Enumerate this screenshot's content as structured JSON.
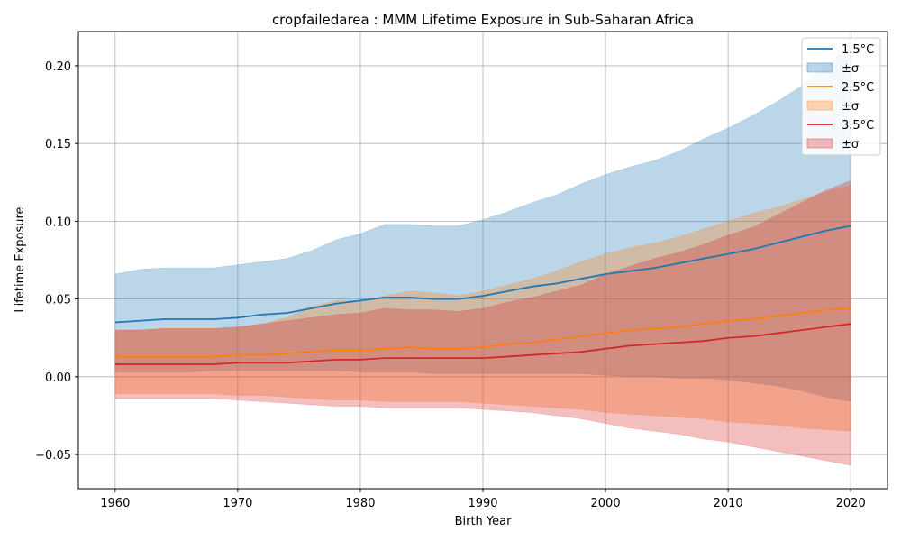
{
  "chart_data": {
    "type": "area",
    "title": "cropfailedarea : MMM Lifetime Exposure in Sub-Saharan Africa",
    "xlabel": "Birth Year",
    "ylabel": "Lifetime Exposure",
    "xlim": [
      1957,
      2023
    ],
    "ylim": [
      -0.072,
      0.222
    ],
    "xticks": [
      1960,
      1970,
      1980,
      1990,
      2000,
      2010,
      2020
    ],
    "yticks": [
      -0.05,
      0.0,
      0.05,
      0.1,
      0.15,
      0.2
    ],
    "ytick_labels": [
      "−0.05",
      "0.00",
      "0.05",
      "0.10",
      "0.15",
      "0.20"
    ],
    "grid": true,
    "legend_position": "top-right",
    "x": [
      1960,
      1962,
      1964,
      1966,
      1968,
      1970,
      1972,
      1974,
      1976,
      1978,
      1980,
      1982,
      1984,
      1986,
      1988,
      1990,
      1992,
      1994,
      1996,
      1998,
      2000,
      2002,
      2004,
      2006,
      2008,
      2010,
      2012,
      2014,
      2016,
      2018,
      2020
    ],
    "series": [
      {
        "name": "1.5°C",
        "band_label": "±σ",
        "color": "#1f77b4",
        "mean": [
          0.035,
          0.036,
          0.037,
          0.037,
          0.037,
          0.038,
          0.04,
          0.041,
          0.044,
          0.047,
          0.049,
          0.051,
          0.051,
          0.05,
          0.05,
          0.052,
          0.055,
          0.058,
          0.06,
          0.063,
          0.066,
          0.068,
          0.07,
          0.073,
          0.076,
          0.079,
          0.082,
          0.086,
          0.09,
          0.094,
          0.097
        ],
        "upper": [
          0.066,
          0.069,
          0.07,
          0.07,
          0.07,
          0.072,
          0.074,
          0.076,
          0.081,
          0.088,
          0.092,
          0.098,
          0.098,
          0.097,
          0.097,
          0.101,
          0.106,
          0.112,
          0.117,
          0.124,
          0.13,
          0.135,
          0.139,
          0.145,
          0.153,
          0.16,
          0.168,
          0.177,
          0.187,
          0.2,
          0.215
        ],
        "lower": [
          0.003,
          0.003,
          0.003,
          0.003,
          0.004,
          0.004,
          0.004,
          0.004,
          0.004,
          0.004,
          0.003,
          0.003,
          0.003,
          0.002,
          0.002,
          0.002,
          0.002,
          0.002,
          0.002,
          0.002,
          0.001,
          0.0,
          0.0,
          -0.001,
          -0.001,
          -0.002,
          -0.004,
          -0.006,
          -0.009,
          -0.013,
          -0.016
        ]
      },
      {
        "name": "2.5°C",
        "band_label": "±σ",
        "color": "#ff7f0e",
        "mean": [
          0.013,
          0.013,
          0.013,
          0.013,
          0.013,
          0.014,
          0.014,
          0.015,
          0.016,
          0.017,
          0.017,
          0.018,
          0.019,
          0.018,
          0.018,
          0.019,
          0.021,
          0.022,
          0.024,
          0.026,
          0.028,
          0.03,
          0.031,
          0.032,
          0.034,
          0.036,
          0.037,
          0.039,
          0.041,
          0.043,
          0.044
        ],
        "upper": [
          0.03,
          0.03,
          0.031,
          0.031,
          0.031,
          0.032,
          0.034,
          0.038,
          0.045,
          0.049,
          0.049,
          0.052,
          0.055,
          0.054,
          0.052,
          0.055,
          0.059,
          0.063,
          0.068,
          0.074,
          0.079,
          0.083,
          0.086,
          0.09,
          0.095,
          0.1,
          0.105,
          0.109,
          0.114,
          0.119,
          0.123
        ],
        "lower": [
          -0.011,
          -0.011,
          -0.011,
          -0.011,
          -0.011,
          -0.012,
          -0.012,
          -0.013,
          -0.014,
          -0.015,
          -0.015,
          -0.016,
          -0.016,
          -0.016,
          -0.016,
          -0.017,
          -0.018,
          -0.019,
          -0.02,
          -0.021,
          -0.023,
          -0.024,
          -0.025,
          -0.026,
          -0.027,
          -0.029,
          -0.03,
          -0.031,
          -0.033,
          -0.034,
          -0.035
        ]
      },
      {
        "name": "3.5°C",
        "band_label": "±σ",
        "color": "#d62728",
        "mean": [
          0.008,
          0.008,
          0.008,
          0.008,
          0.008,
          0.009,
          0.009,
          0.009,
          0.01,
          0.011,
          0.011,
          0.012,
          0.012,
          0.012,
          0.012,
          0.012,
          0.013,
          0.014,
          0.015,
          0.016,
          0.018,
          0.02,
          0.021,
          0.022,
          0.023,
          0.025,
          0.026,
          0.028,
          0.03,
          0.032,
          0.034
        ],
        "upper": [
          0.03,
          0.03,
          0.031,
          0.031,
          0.031,
          0.032,
          0.034,
          0.036,
          0.038,
          0.04,
          0.041,
          0.044,
          0.043,
          0.043,
          0.042,
          0.044,
          0.048,
          0.051,
          0.055,
          0.059,
          0.066,
          0.071,
          0.076,
          0.08,
          0.085,
          0.091,
          0.096,
          0.104,
          0.112,
          0.12,
          0.126
        ],
        "lower": [
          -0.014,
          -0.014,
          -0.014,
          -0.014,
          -0.014,
          -0.015,
          -0.016,
          -0.017,
          -0.018,
          -0.019,
          -0.019,
          -0.02,
          -0.02,
          -0.02,
          -0.02,
          -0.021,
          -0.022,
          -0.023,
          -0.025,
          -0.027,
          -0.03,
          -0.033,
          -0.035,
          -0.037,
          -0.04,
          -0.042,
          -0.045,
          -0.048,
          -0.051,
          -0.054,
          -0.057
        ]
      }
    ]
  }
}
